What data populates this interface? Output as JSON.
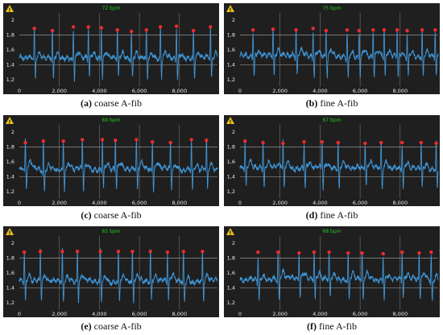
{
  "colors": {
    "background": "#1f1f1f",
    "trace": "#3f95d6",
    "peak": "#ef2b2b",
    "bpm": "#22c81e",
    "grid": "#d8d8d8",
    "warning": "#f0c419"
  },
  "icons": {
    "warning": "warning-triangle-icon"
  },
  "chart_data": [
    {
      "type": "line",
      "label": "(a)",
      "caption": "coarse A-fib",
      "bpm": "72 bpm",
      "xlim": [
        0,
        9900
      ],
      "ylim": [
        1.1,
        2.1
      ],
      "xticks": [
        "0",
        "2,000",
        "4,000",
        "6,000",
        "8,000"
      ],
      "yticks": [
        "1,2",
        "1,4",
        "1,6",
        "1,8",
        "2"
      ],
      "baseline": 1.5,
      "r_peak_x": [
        750,
        1650,
        2700,
        3450,
        4100,
        4900,
        5600,
        6350,
        7050,
        7850,
        8700,
        9550
      ],
      "r_peak_y": [
        1.89,
        1.86,
        1.91,
        1.91,
        1.9,
        1.87,
        1.85,
        1.87,
        1.91,
        1.92,
        1.86,
        1.91
      ]
    },
    {
      "type": "line",
      "label": "(b)",
      "caption": "fine A-fib",
      "bpm": "75 bpm",
      "xlim": [
        0,
        9900
      ],
      "ylim": [
        1.1,
        2.1
      ],
      "xticks": [
        "0",
        "2,000",
        "4,000",
        "6,000",
        "8,000"
      ],
      "yticks": [
        "1,2",
        "1,4",
        "1,6",
        "1,8",
        "2"
      ],
      "baseline": 1.52,
      "r_peak_x": [
        650,
        1650,
        2800,
        3650,
        4300,
        5350,
        5950,
        6650,
        7200,
        7850,
        8350,
        9100,
        9750
      ],
      "r_peak_y": [
        1.87,
        1.88,
        1.87,
        1.89,
        1.86,
        1.87,
        1.86,
        1.87,
        1.87,
        1.87,
        1.86,
        1.87,
        1.87
      ]
    },
    {
      "type": "line",
      "label": "(c)",
      "caption": "coarse A-fib",
      "bpm": "69 bpm",
      "xlim": [
        0,
        9900
      ],
      "ylim": [
        1.1,
        2.1
      ],
      "xticks": [
        "0",
        "2,000",
        "4,000",
        "6,000",
        "8,000"
      ],
      "yticks": [
        "1,2",
        "1,4",
        "1,6",
        "1,8",
        "2"
      ],
      "baseline": 1.5,
      "r_peak_x": [
        300,
        1200,
        2200,
        3150,
        4150,
        4800,
        5850,
        6650,
        7550,
        8600,
        9350
      ],
      "r_peak_y": [
        1.86,
        1.88,
        1.88,
        1.9,
        1.9,
        1.89,
        1.9,
        1.87,
        1.86,
        1.9,
        1.89
      ]
    },
    {
      "type": "line",
      "label": "(d)",
      "caption": "fine A-fib",
      "bpm": "67 bpm",
      "xlim": [
        0,
        9900
      ],
      "ylim": [
        1.1,
        2.1
      ],
      "xticks": [
        "0",
        "2,000",
        "4,000",
        "6,000",
        "8,000"
      ],
      "yticks": [
        "1,2",
        "1,4",
        "1,6",
        "1,8",
        "2"
      ],
      "baseline": 1.52,
      "r_peak_x": [
        250,
        1150,
        2150,
        3200,
        4100,
        4900,
        6250,
        7050,
        8100,
        9050,
        9800
      ],
      "r_peak_y": [
        1.88,
        1.86,
        1.85,
        1.87,
        1.87,
        1.86,
        1.85,
        1.86,
        1.86,
        1.86,
        1.85
      ]
    },
    {
      "type": "line",
      "label": "(e)",
      "caption": "coarse A-fib",
      "bpm": "65 bpm",
      "xlim": [
        0,
        9900
      ],
      "ylim": [
        1.1,
        2.1
      ],
      "xticks": [
        "0",
        "2,000",
        "4,000",
        "6,000",
        "8,000"
      ],
      "yticks": [
        "1,2",
        "1,4",
        "1,6",
        "1,8",
        "2"
      ],
      "baseline": 1.49,
      "r_peak_x": [
        250,
        1050,
        2150,
        2900,
        4050,
        4950,
        5650,
        6550,
        7400,
        8200,
        9150
      ],
      "r_peak_y": [
        1.88,
        1.89,
        1.89,
        1.89,
        1.89,
        1.89,
        1.89,
        1.89,
        1.88,
        1.89,
        1.89
      ]
    },
    {
      "type": "line",
      "label": "(f)",
      "caption": "fine A-fib",
      "bpm": "68 bpm",
      "xlim": [
        0,
        9900
      ],
      "ylim": [
        1.1,
        2.1
      ],
      "xticks": [
        "0",
        "2,000",
        "4,000",
        "6,000",
        "8,000"
      ],
      "yticks": [
        "1,2",
        "1,4",
        "1,6",
        "1,8",
        "2"
      ],
      "baseline": 1.52,
      "r_peak_x": [
        900,
        1900,
        2950,
        3700,
        4450,
        5400,
        6100,
        7150,
        8100,
        8950,
        9550,
        10050
      ],
      "r_peak_y": [
        1.88,
        1.88,
        1.87,
        1.88,
        1.88,
        1.87,
        1.87,
        1.86,
        1.88,
        1.87,
        1.88,
        1.9
      ]
    }
  ]
}
